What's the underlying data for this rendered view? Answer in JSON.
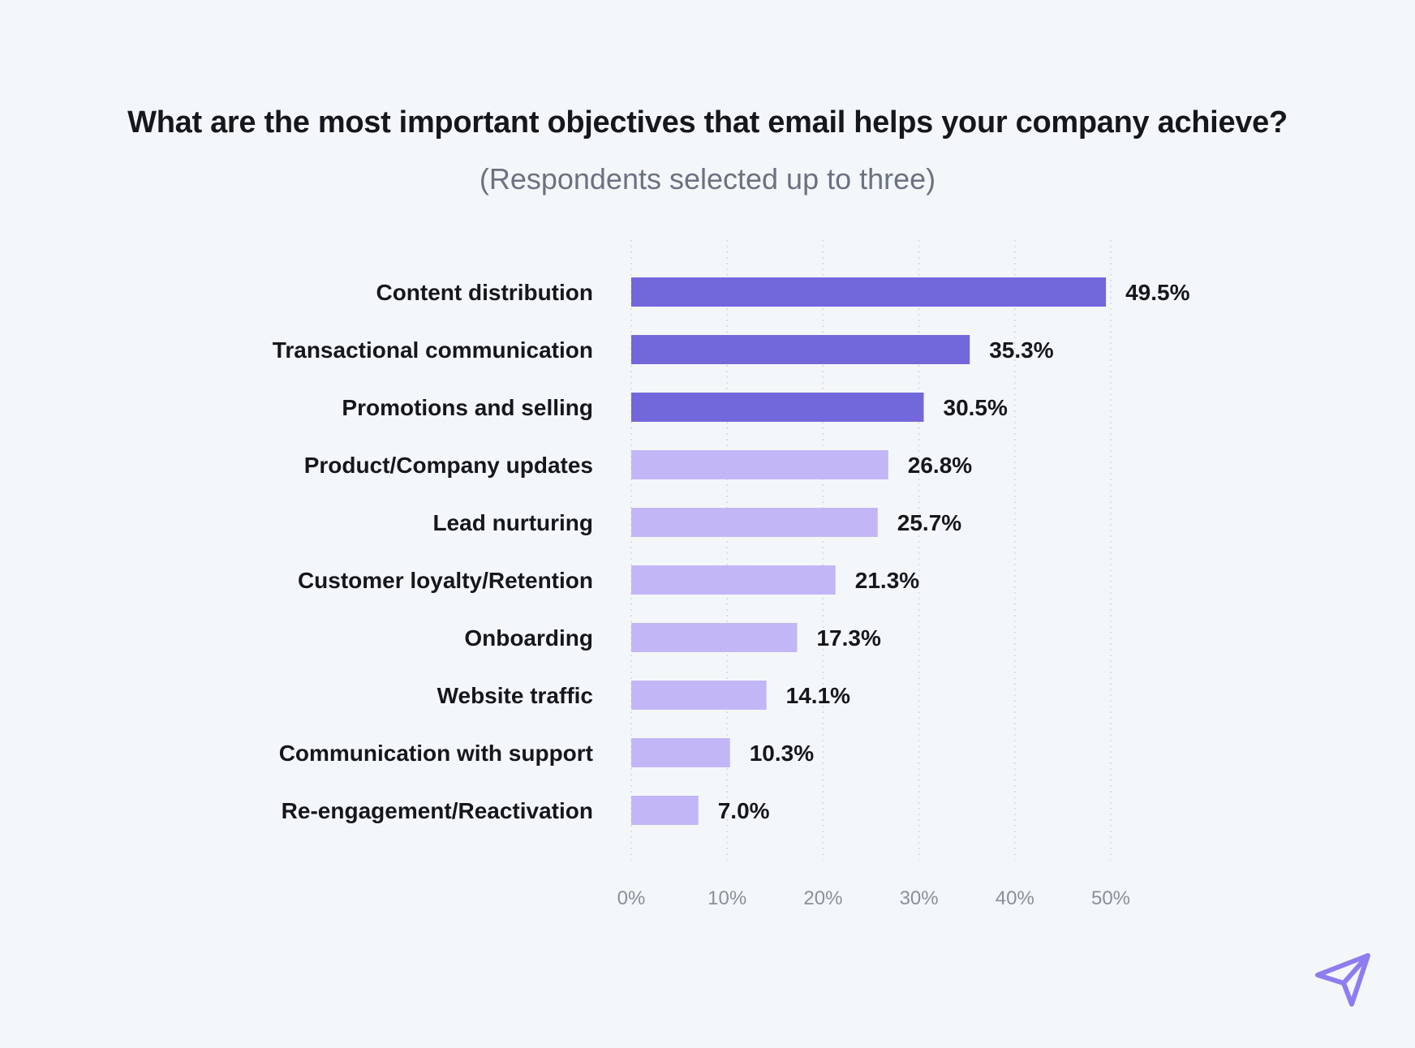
{
  "colors": {
    "background": "#f4f7fa",
    "bar_dark": "#7267db",
    "bar_light": "#c3b6f7",
    "text": "#15171c",
    "subtitle": "#6b7280",
    "tick": "#8a8f99",
    "logo": "#8f7cf0"
  },
  "logo_icon": "paper-plane-icon",
  "chart_data": {
    "type": "bar",
    "orientation": "horizontal",
    "title": "What are the most important objectives that email helps your company achieve?",
    "subtitle": "(Respondents selected up to three)",
    "categories": [
      "Content distribution",
      "Transactional communication",
      "Promotions and selling",
      "Product/Company updates",
      "Lead nurturing",
      "Customer loyalty/Retention",
      "Onboarding",
      "Website traffic",
      "Communication with support",
      "Re-engagement/Reactivation"
    ],
    "values": [
      49.5,
      35.3,
      30.5,
      26.8,
      25.7,
      21.3,
      17.3,
      14.1,
      10.3,
      7.0
    ],
    "value_labels": [
      "49.5%",
      "35.3%",
      "30.5%",
      "26.8%",
      "25.7%",
      "21.3%",
      "17.3%",
      "14.1%",
      "10.3%",
      "7.0%"
    ],
    "highlighted_top_n": 3,
    "xlim": [
      0,
      50
    ],
    "xticks": [
      0,
      10,
      20,
      30,
      40,
      50
    ],
    "xtick_labels": [
      "0%",
      "10%",
      "20%",
      "30%",
      "40%",
      "50%"
    ],
    "xlabel": "",
    "ylabel": "",
    "grid": true
  }
}
